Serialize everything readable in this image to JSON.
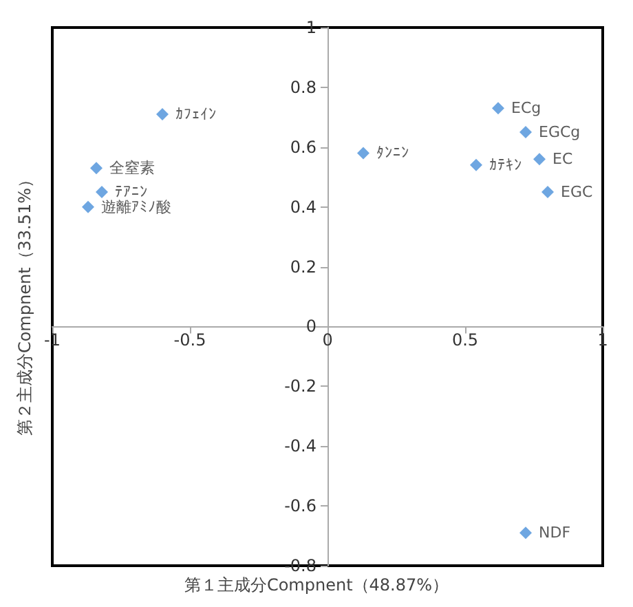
{
  "chart_data": {
    "type": "scatter",
    "xlabel": "第１主成分Compnent（48.87%）",
    "ylabel": "第２主成分Compnent（33.51%）",
    "xlim": [
      -1,
      1
    ],
    "xticks": [
      -1,
      -0.5,
      0,
      0.5,
      1
    ],
    "ylim": [
      -0.8,
      1
    ],
    "yticks": [
      -0.8,
      -0.6,
      -0.4,
      -0.2,
      0,
      0.2,
      0.4,
      0.6,
      0.8,
      1
    ],
    "grid": false,
    "legend": false,
    "marker": "diamond",
    "series": [
      {
        "name": "ｶﾌｪｲﾝ",
        "color": "#4a90d9",
        "x": [
          -0.6
        ],
        "values": [
          0.71
        ]
      },
      {
        "name": "全窒素",
        "color": "#4a90d9",
        "x": [
          -0.84
        ],
        "values": [
          0.53
        ]
      },
      {
        "name": "ﾃｱﾆﾝ",
        "color": "#4a90d9",
        "x": [
          -0.82
        ],
        "values": [
          0.45
        ]
      },
      {
        "name": "遊離ｱﾐﾉ酸",
        "color": "#4a90d9",
        "x": [
          -0.87
        ],
        "values": [
          0.4
        ]
      },
      {
        "name": "ﾀﾝﾆﾝ",
        "color": "#4a90d9",
        "x": [
          0.13
        ],
        "values": [
          0.58
        ]
      },
      {
        "name": "ｶﾃｷﾝ",
        "color": "#4a90d9",
        "x": [
          0.54
        ],
        "values": [
          0.54
        ]
      },
      {
        "name": "ECg",
        "color": "#4a90d9",
        "x": [
          0.62
        ],
        "values": [
          0.73
        ]
      },
      {
        "name": "EGCg",
        "color": "#4a90d9",
        "x": [
          0.72
        ],
        "values": [
          0.65
        ]
      },
      {
        "name": "EC",
        "color": "#4a90d9",
        "x": [
          0.77
        ],
        "values": [
          0.56
        ]
      },
      {
        "name": "EGC",
        "color": "#4a90d9",
        "x": [
          0.8
        ],
        "values": [
          0.45
        ]
      },
      {
        "name": "NDF",
        "color": "#4a90d9",
        "x": [
          0.72
        ],
        "values": [
          -0.69
        ]
      }
    ]
  }
}
